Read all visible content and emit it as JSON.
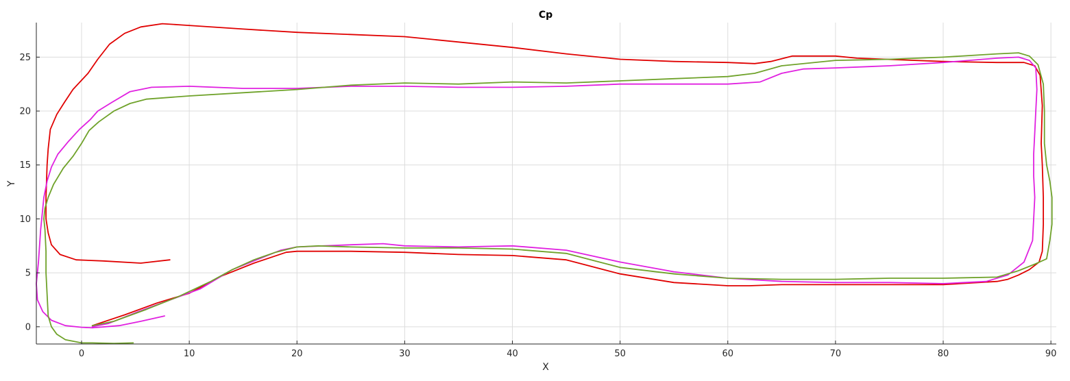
{
  "chart_data": {
    "type": "line",
    "title": "Cp",
    "xlabel": "X",
    "ylabel": "Y",
    "xlim": [
      -4.2,
      90.5
    ],
    "ylim": [
      -1.6,
      28.2
    ],
    "xticks": [
      0,
      10,
      20,
      30,
      40,
      50,
      60,
      70,
      80,
      90
    ],
    "yticks": [
      0,
      5,
      10,
      15,
      20,
      25
    ],
    "grid": true,
    "legend": "none",
    "colors": {
      "axis": "#262626",
      "grid": "#dcdcdc",
      "background": "#ffffff"
    },
    "series": [
      {
        "color": "#e00000",
        "points": [
          [
            8.2,
            6.2
          ],
          [
            5.5,
            5.9
          ],
          [
            2,
            6.1
          ],
          [
            -0.5,
            6.2
          ],
          [
            -2,
            6.7
          ],
          [
            -2.8,
            7.6
          ],
          [
            -3.1,
            8.7
          ],
          [
            -3.3,
            10
          ],
          [
            -3.3,
            12
          ],
          [
            -3.2,
            15
          ],
          [
            -3.1,
            16.5
          ],
          [
            -2.9,
            18.3
          ],
          [
            -2.3,
            19.7
          ],
          [
            -1.6,
            20.8
          ],
          [
            -0.8,
            22
          ],
          [
            0.6,
            23.5
          ],
          [
            1.5,
            24.8
          ],
          [
            2.6,
            26.2
          ],
          [
            4,
            27.2
          ],
          [
            5.5,
            27.8
          ],
          [
            7.5,
            28.1
          ],
          [
            9,
            28
          ],
          [
            15,
            27.6
          ],
          [
            20,
            27.3
          ],
          [
            30,
            26.9
          ],
          [
            35,
            26.4
          ],
          [
            40,
            25.9
          ],
          [
            45,
            25.3
          ],
          [
            50,
            24.8
          ],
          [
            55,
            24.6
          ],
          [
            60,
            24.5
          ],
          [
            62.5,
            24.4
          ],
          [
            64,
            24.6
          ],
          [
            66,
            25.1
          ],
          [
            70,
            25.1
          ],
          [
            72,
            24.9
          ],
          [
            80,
            24.6
          ],
          [
            85,
            24.5
          ],
          [
            87.5,
            24.5
          ],
          [
            88.5,
            24.2
          ],
          [
            89,
            23.3
          ],
          [
            89.2,
            20.5
          ],
          [
            89.1,
            17
          ],
          [
            89.2,
            15
          ],
          [
            89.3,
            12
          ],
          [
            89.3,
            9.5
          ],
          [
            89.2,
            7
          ],
          [
            88.9,
            6
          ],
          [
            88,
            5.3
          ],
          [
            87,
            4.8
          ],
          [
            86,
            4.4
          ],
          [
            85,
            4.2
          ],
          [
            80,
            3.9
          ],
          [
            75,
            3.9
          ],
          [
            70,
            3.9
          ],
          [
            65,
            3.9
          ],
          [
            62,
            3.8
          ],
          [
            60,
            3.8
          ],
          [
            55,
            4.1
          ],
          [
            50,
            4.9
          ],
          [
            45,
            6.2
          ],
          [
            40,
            6.6
          ],
          [
            35,
            6.7
          ],
          [
            30,
            6.9
          ],
          [
            25,
            7
          ],
          [
            20,
            7
          ],
          [
            19,
            6.9
          ],
          [
            16,
            5.9
          ],
          [
            13,
            4.7
          ],
          [
            10,
            3.1
          ],
          [
            7,
            2.2
          ],
          [
            4,
            1.1
          ],
          [
            1,
            0.1
          ]
        ]
      },
      {
        "color": "#e020e0",
        "points": [
          [
            7.7,
            1
          ],
          [
            5.5,
            0.5
          ],
          [
            3.5,
            0.1
          ],
          [
            1,
            -0.1
          ],
          [
            0,
            -0.05
          ],
          [
            -1.5,
            0.1
          ],
          [
            -2.8,
            0.6
          ],
          [
            -3.6,
            1.4
          ],
          [
            -4.1,
            2.5
          ],
          [
            -4.2,
            4
          ],
          [
            -4,
            6
          ],
          [
            -3.8,
            9
          ],
          [
            -3.5,
            12
          ],
          [
            -3.2,
            13.5
          ],
          [
            -2.8,
            14.8
          ],
          [
            -2.2,
            16
          ],
          [
            -1.2,
            17.2
          ],
          [
            -0.2,
            18.3
          ],
          [
            0.8,
            19.2
          ],
          [
            1.5,
            20
          ],
          [
            2.8,
            20.8
          ],
          [
            4.5,
            21.8
          ],
          [
            6.5,
            22.2
          ],
          [
            10,
            22.3
          ],
          [
            15,
            22.1
          ],
          [
            20,
            22.1
          ],
          [
            25,
            22.3
          ],
          [
            30,
            22.3
          ],
          [
            35,
            22.2
          ],
          [
            40,
            22.2
          ],
          [
            45,
            22.3
          ],
          [
            50,
            22.5
          ],
          [
            55,
            22.5
          ],
          [
            60,
            22.5
          ],
          [
            63,
            22.7
          ],
          [
            65,
            23.5
          ],
          [
            67,
            23.9
          ],
          [
            70,
            24
          ],
          [
            75,
            24.2
          ],
          [
            80,
            24.5
          ],
          [
            85,
            24.9
          ],
          [
            87,
            25
          ],
          [
            88,
            24.7
          ],
          [
            88.6,
            24
          ],
          [
            88.7,
            22
          ],
          [
            88.6,
            20
          ],
          [
            88.5,
            18
          ],
          [
            88.4,
            16
          ],
          [
            88.4,
            14
          ],
          [
            88.5,
            12
          ],
          [
            88.4,
            10
          ],
          [
            88.3,
            8
          ],
          [
            87.5,
            6
          ],
          [
            86,
            4.8
          ],
          [
            84,
            4.2
          ],
          [
            80,
            4
          ],
          [
            75,
            4.1
          ],
          [
            70,
            4.1
          ],
          [
            65,
            4.2
          ],
          [
            60,
            4.5
          ],
          [
            55,
            5.1
          ],
          [
            50,
            6
          ],
          [
            45,
            7.1
          ],
          [
            40,
            7.5
          ],
          [
            35,
            7.4
          ],
          [
            30,
            7.5
          ],
          [
            28,
            7.7
          ],
          [
            25,
            7.6
          ],
          [
            20,
            7.4
          ],
          [
            18.5,
            7.1
          ],
          [
            16,
            6.1
          ],
          [
            14,
            5.3
          ],
          [
            11,
            3.5
          ],
          [
            8,
            2.4
          ],
          [
            5,
            1.3
          ],
          [
            2.5,
            0.3
          ],
          [
            1,
            0
          ]
        ]
      },
      {
        "color": "#6fa22a",
        "points": [
          [
            4.8,
            -1.5
          ],
          [
            3,
            -1.55
          ],
          [
            1,
            -1.5
          ],
          [
            0,
            -1.5
          ],
          [
            -1.5,
            -1.2
          ],
          [
            -2.3,
            -0.7
          ],
          [
            -2.8,
            0
          ],
          [
            -3.1,
            1
          ],
          [
            -3.2,
            3
          ],
          [
            -3.3,
            5
          ],
          [
            -3.3,
            7
          ],
          [
            -3.4,
            9
          ],
          [
            -3.5,
            10
          ],
          [
            -3.4,
            11
          ],
          [
            -3.1,
            12
          ],
          [
            -2.6,
            13.2
          ],
          [
            -1.7,
            14.7
          ],
          [
            -0.8,
            15.8
          ],
          [
            0,
            17
          ],
          [
            0.7,
            18.2
          ],
          [
            1.6,
            19
          ],
          [
            3,
            20
          ],
          [
            4.5,
            20.7
          ],
          [
            6,
            21.1
          ],
          [
            10,
            21.4
          ],
          [
            15,
            21.7
          ],
          [
            20,
            22
          ],
          [
            25,
            22.4
          ],
          [
            30,
            22.6
          ],
          [
            35,
            22.5
          ],
          [
            40,
            22.7
          ],
          [
            45,
            22.6
          ],
          [
            50,
            22.8
          ],
          [
            55,
            23
          ],
          [
            60,
            23.2
          ],
          [
            62.5,
            23.5
          ],
          [
            65,
            24.2
          ],
          [
            70,
            24.7
          ],
          [
            75,
            24.8
          ],
          [
            80,
            25
          ],
          [
            85,
            25.3
          ],
          [
            87,
            25.4
          ],
          [
            88,
            25.1
          ],
          [
            88.8,
            24.3
          ],
          [
            89.3,
            22.5
          ],
          [
            89.4,
            20
          ],
          [
            89.4,
            17
          ],
          [
            89.6,
            15
          ],
          [
            89.9,
            13.5
          ],
          [
            90.1,
            12
          ],
          [
            90.1,
            9.5
          ],
          [
            89.9,
            8
          ],
          [
            89.6,
            6.3
          ],
          [
            88.5,
            5.8
          ],
          [
            87,
            5.2
          ],
          [
            86,
            4.9
          ],
          [
            85,
            4.6
          ],
          [
            80,
            4.5
          ],
          [
            75,
            4.5
          ],
          [
            70,
            4.4
          ],
          [
            65,
            4.4
          ],
          [
            60,
            4.5
          ],
          [
            55,
            4.9
          ],
          [
            50,
            5.5
          ],
          [
            45,
            6.8
          ],
          [
            40,
            7.2
          ],
          [
            35,
            7.3
          ],
          [
            30,
            7.3
          ],
          [
            25,
            7.4
          ],
          [
            22,
            7.5
          ],
          [
            20,
            7.4
          ],
          [
            18,
            6.9
          ],
          [
            16,
            6.2
          ],
          [
            14,
            5.3
          ],
          [
            12,
            4.2
          ],
          [
            9,
            2.8
          ],
          [
            6,
            1.6
          ],
          [
            3,
            0.5
          ],
          [
            1,
            0.1
          ]
        ]
      }
    ]
  }
}
